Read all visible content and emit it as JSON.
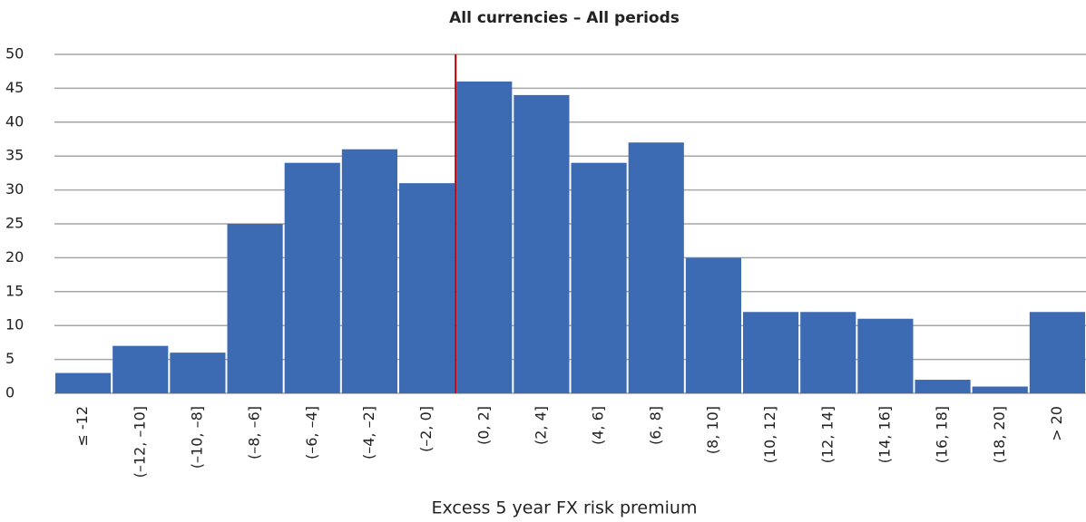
{
  "chart_data": {
    "type": "bar",
    "title": "All currencies – All periods",
    "xlabel": "Excess 5 year FX risk premium",
    "categories": [
      "≤ -12",
      "(–12, –10]",
      "(–10, –8]",
      "(–8, –6]",
      "(–6, –4]",
      "(–4, –2]",
      "(–2, 0]",
      "(0, 2]",
      "(2, 4]",
      "(4, 6]",
      "(6, 8]",
      "(8, 10]",
      "(10, 12]",
      "(12, 14]",
      "(14, 16]",
      "(16, 18]",
      "(18, 20]",
      "> 20"
    ],
    "values": [
      3,
      7,
      6,
      25,
      34,
      36,
      31,
      46,
      44,
      34,
      37,
      20,
      12,
      12,
      11,
      2,
      1,
      12
    ],
    "color": "#3d6bb3",
    "ylim": [
      0,
      50
    ],
    "yticks": [
      0,
      5,
      10,
      15,
      20,
      25,
      30,
      35,
      40,
      45,
      50
    ],
    "grid": true,
    "reference_line": {
      "after_category": "(–2, 0]",
      "color": "#c00000"
    }
  }
}
